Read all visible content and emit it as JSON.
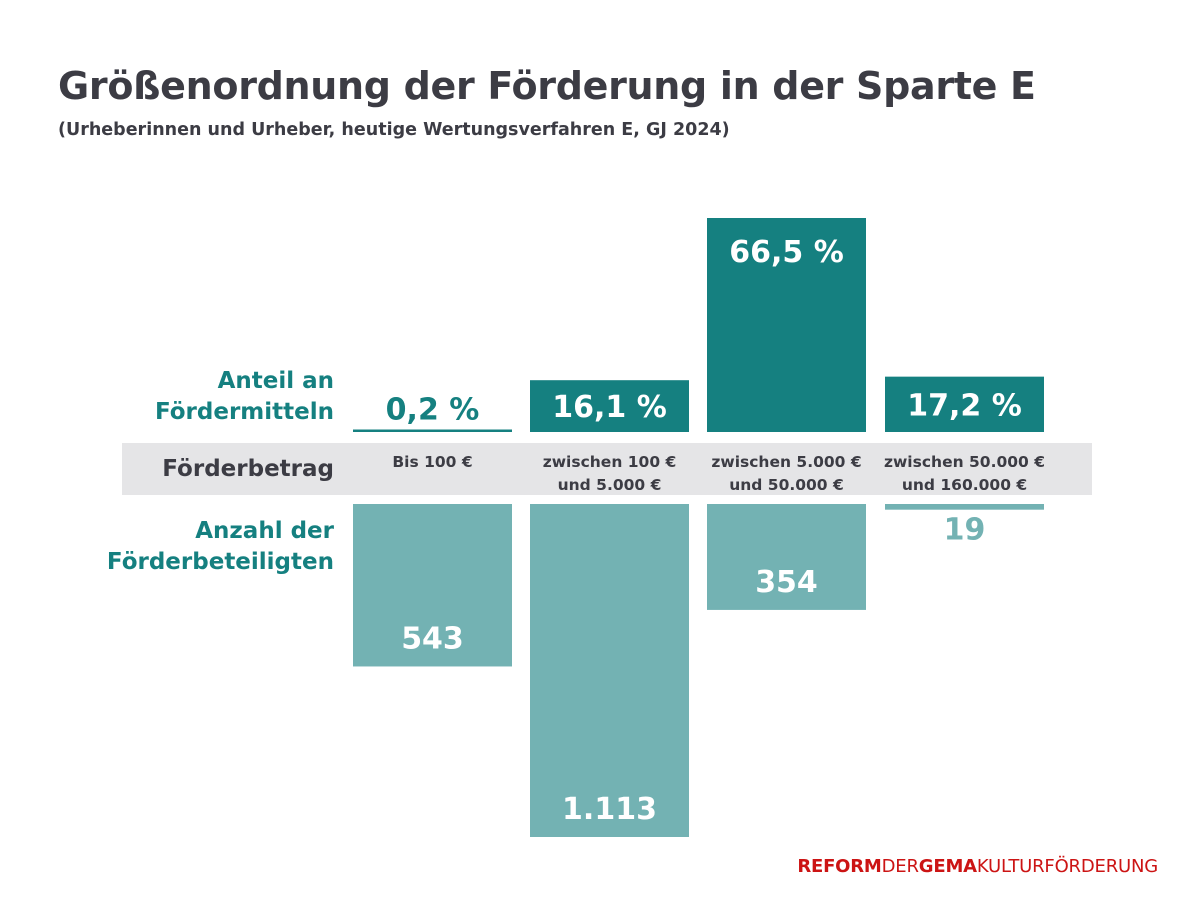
{
  "title": "Größenordnung der Förderung in der Sparte E",
  "subtitle": "(Urheberinnen und Urheber, heutige Wertungsverfahren E, GJ 2024)",
  "row_labels": {
    "share_line1": "Anteil an",
    "share_line2": "Fördermitteln",
    "amount": "Förderbetrag",
    "count_line1": "Anzahl der",
    "count_line2": "Förderbeteiligten"
  },
  "colors": {
    "share_bar": "#158080",
    "count_bar": "#73b2b3",
    "band": "#e5e5e7",
    "brand_red": "#cc1414",
    "text_dark": "#3c3c44"
  },
  "chart_data": {
    "type": "bar",
    "title": "Größenordnung der Förderung in der Sparte E",
    "subtitle": "(Urheberinnen und Urheber, heutige Wertungsverfahren E, GJ 2024)",
    "categories": [
      [
        "Bis 100 €"
      ],
      [
        "zwischen 100 €",
        "und 5.000 €"
      ],
      [
        "zwischen 5.000 €",
        "und 50.000 €"
      ],
      [
        "zwischen 50.000 €",
        "und 160.000 €"
      ]
    ],
    "series": [
      {
        "name": "Anteil an Fördermitteln",
        "direction": "up",
        "unit": "%",
        "values": [
          0.2,
          16.1,
          66.5,
          17.2
        ],
        "labels": [
          "0,2 %",
          "16,1 %",
          "66,5 %",
          "17,2 %"
        ]
      },
      {
        "name": "Anzahl der Förderbeteiligten",
        "direction": "down",
        "unit": "",
        "values": [
          543,
          1113,
          354,
          19
        ],
        "labels": [
          "543",
          "1.113",
          "354",
          "19"
        ]
      }
    ]
  },
  "footer": {
    "reform": "REFORM",
    "der": "DER",
    "gema": "GEMA",
    "kultur": "KULTURFÖRDERUNG"
  }
}
